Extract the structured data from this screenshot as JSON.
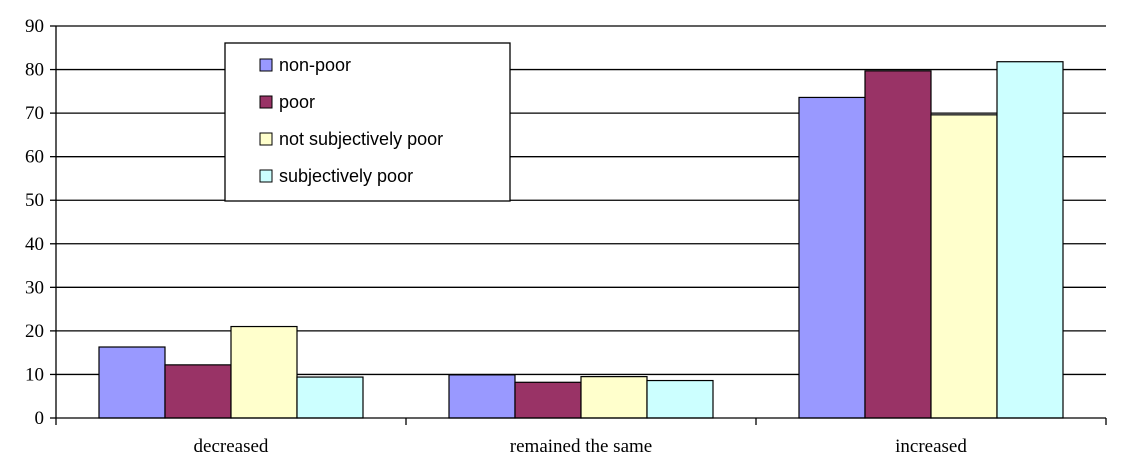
{
  "chart_data": {
    "type": "bar",
    "title": "",
    "xlabel": "",
    "ylabel": "",
    "categories": [
      "decreased",
      "remained the same",
      "increased"
    ],
    "series": [
      {
        "name": "non-poor",
        "values": [
          16.3,
          9.9,
          73.6
        ],
        "color": "#9999FF"
      },
      {
        "name": "poor",
        "values": [
          12.2,
          8.2,
          79.7
        ],
        "color": "#993366"
      },
      {
        "name": "not subjectively poor",
        "values": [
          21.0,
          9.5,
          69.6
        ],
        "color": "#FFFFCC"
      },
      {
        "name": "subjectively poor",
        "values": [
          9.4,
          8.6,
          81.8
        ],
        "color": "#CCFFFF"
      }
    ],
    "ylim": [
      0,
      90
    ],
    "yticks": [
      0,
      10,
      20,
      30,
      40,
      50,
      60,
      70,
      80,
      90
    ],
    "grid": true,
    "legend_position": "top-left"
  }
}
